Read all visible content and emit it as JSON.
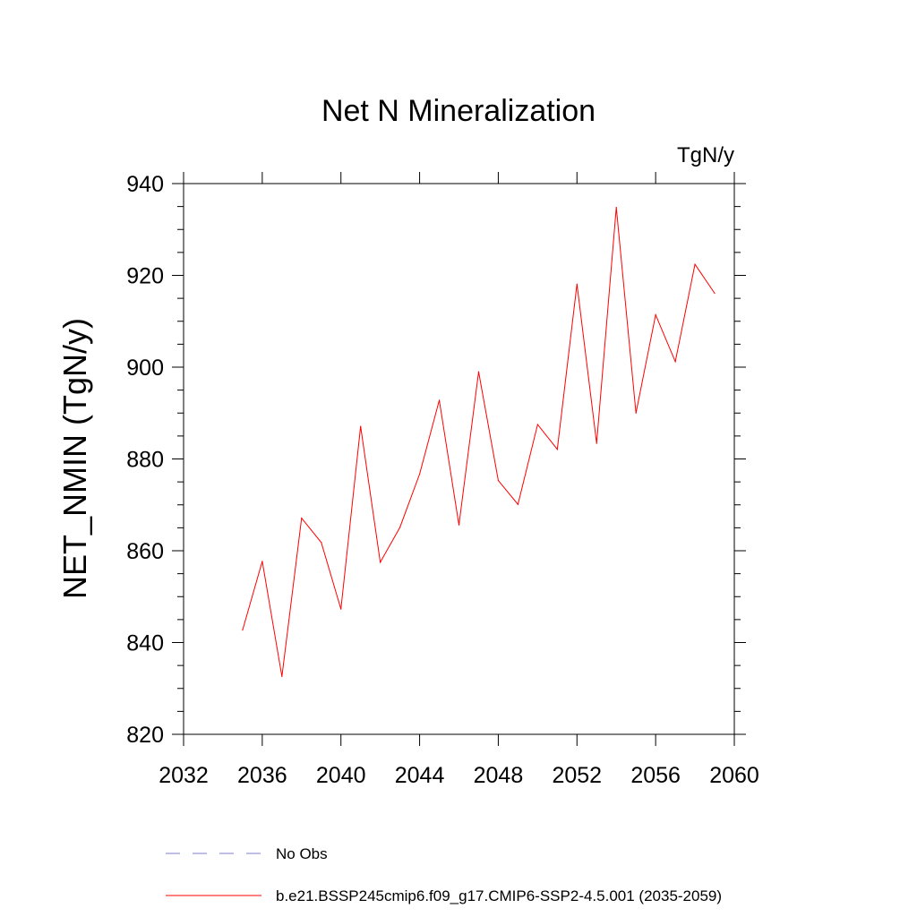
{
  "chart_data": {
    "type": "line",
    "title": "Net N Mineralization",
    "units_label": "TgN/y",
    "ylabel": "NET_NMIN  (TgN/y)",
    "xlabel": "",
    "xlim": [
      2032,
      2060
    ],
    "ylim": [
      820,
      940
    ],
    "x_ticks": [
      2032,
      2036,
      2040,
      2044,
      2048,
      2052,
      2056,
      2060
    ],
    "y_ticks": [
      820,
      840,
      860,
      880,
      900,
      920,
      940
    ],
    "grid": false,
    "series": [
      {
        "name": "b.e21.BSSP245cmip6.f09_g17.CMIP6-SSP2-4.5.001 (2035-2059)",
        "color": "#ff0000",
        "x": [
          2035,
          2036,
          2037,
          2038,
          2039,
          2040,
          2041,
          2042,
          2043,
          2044,
          2045,
          2046,
          2047,
          2048,
          2049,
          2050,
          2051,
          2052,
          2053,
          2054,
          2055,
          2056,
          2057,
          2058,
          2059
        ],
        "values": [
          842.7,
          857.7,
          832.6,
          867.1,
          861.8,
          847.3,
          887.1,
          857.5,
          865.1,
          876.7,
          892.8,
          865.6,
          899.0,
          875.3,
          870.1,
          887.5,
          882.1,
          918.1,
          883.4,
          934.8,
          890.0,
          911.4,
          901.2,
          922.4,
          916.1
        ]
      }
    ],
    "legend": {
      "placement": "bottom",
      "entries": [
        {
          "label": "No Obs",
          "style": "dashed",
          "color": "#7f7fcc"
        },
        {
          "label": "b.e21.BSSP245cmip6.f09_g17.CMIP6-SSP2-4.5.001 (2035-2059)",
          "style": "solid",
          "color": "#ff0000"
        }
      ]
    }
  }
}
